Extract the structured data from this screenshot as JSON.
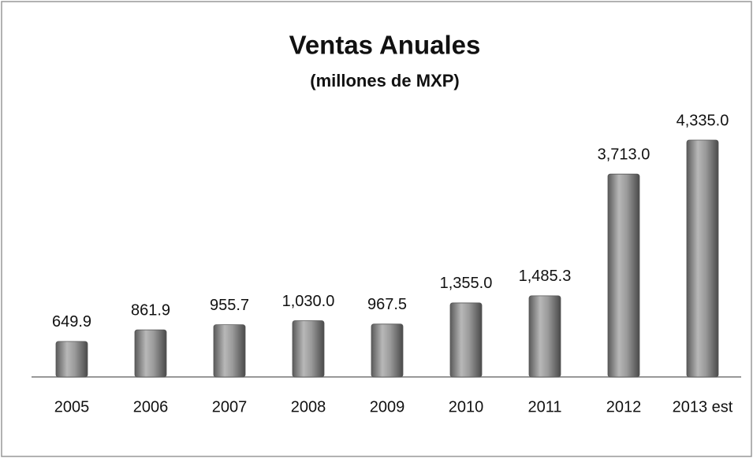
{
  "chart_data": {
    "type": "bar",
    "title": "Ventas Anuales",
    "subtitle": "(millones de MXP)",
    "categories": [
      "2005",
      "2006",
      "2007",
      "2008",
      "2009",
      "2010",
      "2011",
      "2012",
      "2013 est"
    ],
    "values": [
      649.9,
      861.9,
      955.7,
      1030.0,
      967.5,
      1355.0,
      1485.3,
      3713.0,
      4335.0
    ],
    "value_labels": [
      "649.9",
      "861.9",
      "955.7",
      "1,030.0",
      "967.5",
      "1,355.0",
      "1,485.3",
      "3,713.0",
      "4,335.0"
    ],
    "color": "#8a8a8a"
  }
}
